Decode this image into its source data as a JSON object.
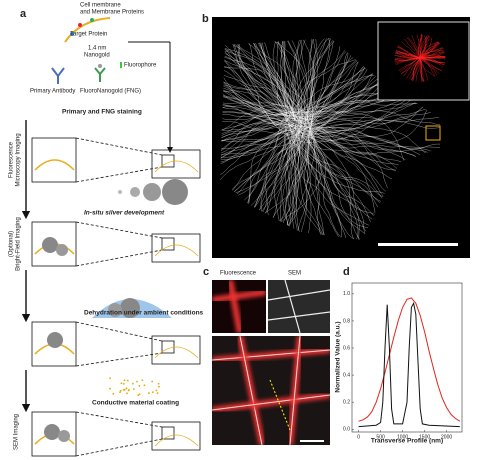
{
  "panels": {
    "a": "a",
    "b": "b",
    "c": "c",
    "d": "d"
  },
  "panel_a": {
    "membrane_label": [
      "Cell membrane",
      "and Membrane Proteins"
    ],
    "target_protein": "Target Protein",
    "nanogold": [
      "1.4 nm",
      "Nanogold"
    ],
    "fluorophore": "Fluorophore",
    "primary_antibody": "Primary Antibody",
    "fng": "FluoroNanogold (FNG)",
    "step1": "Primary and FNG staining",
    "side1": [
      "Fluorescence",
      "Microscopy Imaging"
    ],
    "step2": "In-situ silver development",
    "side2": [
      "(Optional)",
      "Bright-Field Imaging"
    ],
    "step3": "Dehydration under ambient conditions",
    "step4": "Conductive material coating",
    "side3": "SEM Imaging"
  },
  "panel_c": {
    "fluorescence": "Fluorescence",
    "sem": "SEM"
  },
  "chart_data": {
    "type": "line",
    "xlabel": "Transverse Profile (nm)",
    "ylabel": "Normalized Value (a.u.)",
    "xlim": [
      -150,
      2350
    ],
    "ylim": [
      -0.02,
      1.08
    ],
    "xticks": [
      0,
      500,
      1000,
      1500,
      2000
    ],
    "yticks": [
      {
        "value": 0,
        "label": "0.0"
      },
      {
        "value": 0.2,
        "label": "0.2"
      },
      {
        "value": 0.4,
        "label": "0.4"
      },
      {
        "value": 0.6,
        "label": "0.6"
      },
      {
        "value": 0.8,
        "label": "0.8"
      },
      {
        "value": 1,
        "label": "1.0"
      }
    ],
    "series": [
      {
        "color": "#e3241b",
        "x": [
          0,
          100,
          200,
          300,
          400,
          500,
          600,
          700,
          800,
          900,
          1000,
          1100,
          1200,
          1300,
          1400,
          1500,
          1600,
          1700,
          1800,
          1900,
          2000,
          2100,
          2200,
          2300
        ],
        "values": [
          0.06,
          0.07,
          0.09,
          0.13,
          0.2,
          0.3,
          0.42,
          0.55,
          0.68,
          0.8,
          0.9,
          0.96,
          0.97,
          0.93,
          0.84,
          0.72,
          0.58,
          0.45,
          0.33,
          0.23,
          0.16,
          0.11,
          0.08,
          0.06
        ]
      },
      {
        "color": "#111111",
        "x": [
          0,
          400,
          500,
          550,
          600,
          650,
          700,
          750,
          800,
          1000,
          1100,
          1150,
          1200,
          1250,
          1300,
          1350,
          1400,
          1450,
          1600,
          2300
        ],
        "values": [
          0.02,
          0.03,
          0.05,
          0.2,
          0.6,
          0.92,
          0.6,
          0.15,
          0.04,
          0.04,
          0.2,
          0.6,
          0.9,
          0.93,
          0.85,
          0.5,
          0.15,
          0.04,
          0.03,
          0.02
        ]
      }
    ]
  }
}
